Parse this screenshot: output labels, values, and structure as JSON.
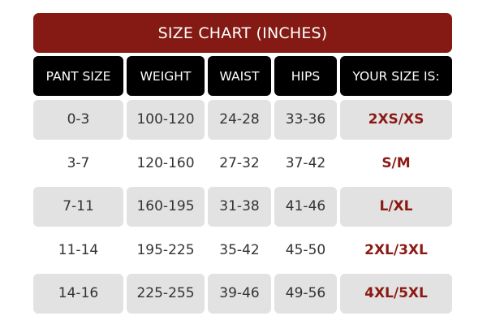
{
  "title": "SIZE CHART (INCHES)",
  "headers": [
    "PANT SIZE",
    "WEIGHT",
    "WAIST",
    "HIPS",
    "YOUR SIZE IS:"
  ],
  "rows": [
    [
      "0-3",
      "100-120",
      "24-28",
      "33-36",
      "2XS/XS"
    ],
    [
      "3-7",
      "120-160",
      "27-32",
      "37-42",
      "S/M"
    ],
    [
      "7-11",
      "160-195",
      "31-38",
      "41-46",
      "L/XL"
    ],
    [
      "11-14",
      "195-225",
      "35-42",
      "45-50",
      "2XL/3XL"
    ],
    [
      "14-16",
      "225-255",
      "39-46",
      "49-56",
      "4XL/5XL"
    ]
  ],
  "colors": {
    "title_bg": "#841a13",
    "header_bg": "#000000",
    "row_alt_bg": "#e2e2e2",
    "size_text": "#8b1a14"
  }
}
